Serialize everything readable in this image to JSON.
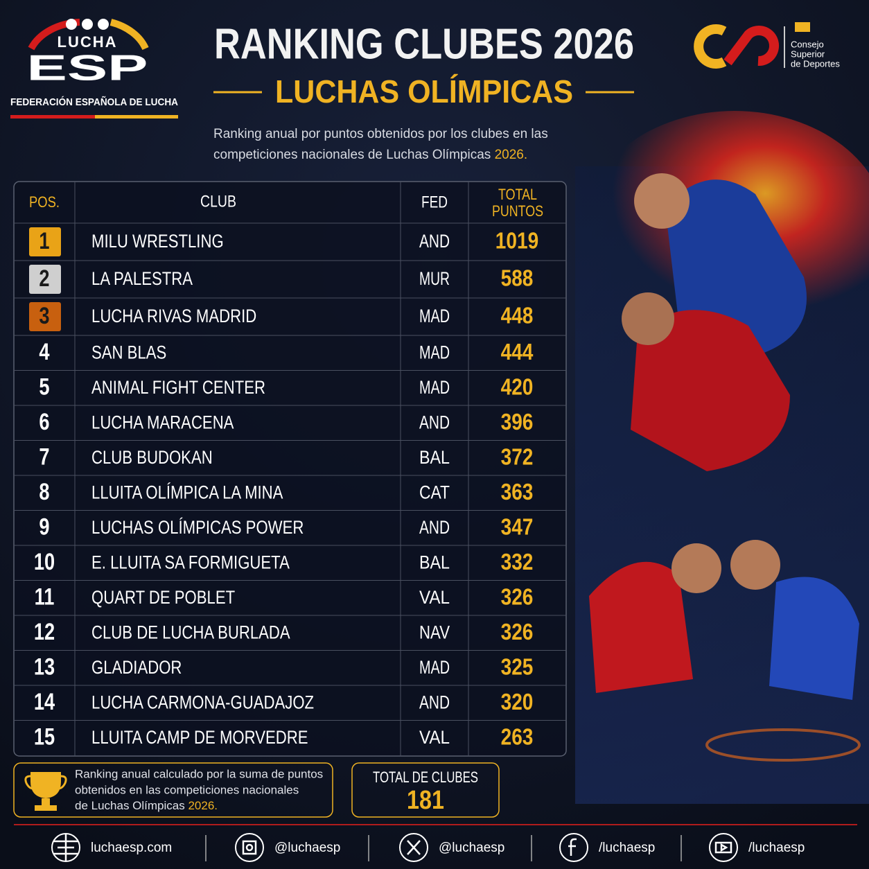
{
  "header": {
    "logo_top": "LUCHA",
    "logo_main": "ESP",
    "federation": "FEDERACIÓN ESPAÑOLA DE LUCHA",
    "title": "RANKING CLUBES 2026",
    "subtitle": "LUCHAS OLÍMPICAS",
    "description": [
      "Ranking anual por puntos obtenidos por los clubes en las",
      "competiciones nacionales de Luchas Olímpicas "
    ],
    "description_highlight": "2026.",
    "partner": [
      "Consejo",
      "Superior",
      "de Deportes"
    ]
  },
  "table": {
    "header": {
      "pos": "POS.",
      "club": "CLUB",
      "fed": "FED",
      "points": [
        "TOTAL",
        "PUNTOS"
      ]
    },
    "rows": [
      [
        1,
        "MILU WRESTLING",
        "AND",
        1019
      ],
      [
        2,
        "LA PALESTRA",
        "MUR",
        588
      ],
      [
        3,
        "LUCHA RIVAS MADRID",
        "MAD",
        448
      ],
      [
        4,
        "SAN BLAS",
        "MAD",
        444
      ],
      [
        5,
        "ANIMAL FIGHT CENTER",
        "MAD",
        420
      ],
      [
        6,
        "LUCHA MARACENA",
        "AND",
        396
      ],
      [
        7,
        "CLUB BUDOKAN",
        "BAL",
        372
      ],
      [
        8,
        "LLUITA OLÍMPICA LA MINA",
        "CAT",
        363
      ],
      [
        9,
        "LUCHAS OLÍMPICAS POWER",
        "AND",
        347
      ],
      [
        10,
        "E. LLUITA SA FORMIGUETA",
        "BAL",
        332
      ],
      [
        11,
        "QUART DE POBLET",
        "VAL",
        326
      ],
      [
        12,
        "CLUB DE LUCHA BURLADA",
        "NAV",
        326
      ],
      [
        13,
        "GLADIADOR",
        "MAD",
        325
      ],
      [
        14,
        "LUCHA CARMONA-GUADAJOZ",
        "AND",
        320
      ],
      [
        15,
        "LLUITA CAMP DE MORVEDRE",
        "VAL",
        263
      ]
    ]
  },
  "note": {
    "lines": [
      "Ranking anual calculado por la suma de puntos",
      "obtenidos en las competiciones nacionales",
      "de Luchas Olímpicas "
    ],
    "highlight": "2026."
  },
  "total": {
    "label": "TOTAL DE CLUBES",
    "value": 181
  },
  "social": [
    "luchaesp.com",
    "@luchaesp",
    "@luchaesp",
    "/luchaesp",
    "/luchaesp"
  ]
}
